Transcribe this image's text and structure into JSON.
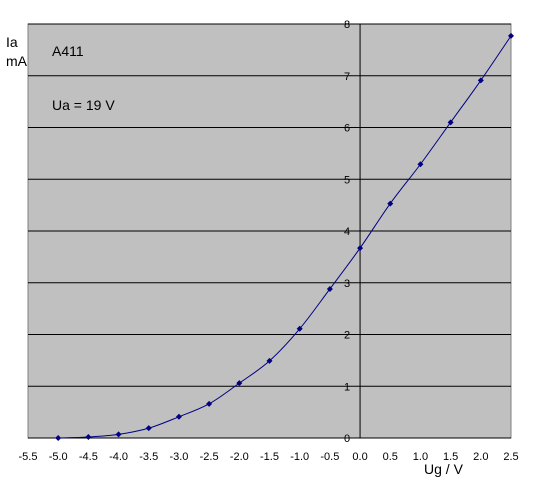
{
  "chart_data": {
    "type": "line",
    "title": "",
    "annotations": [
      "A411",
      "Ua = 19 V"
    ],
    "xlabel": "Ug / V",
    "ylabel": [
      "Ia",
      "mA"
    ],
    "xlim": [
      -5.5,
      2.5
    ],
    "ylim": [
      0,
      8
    ],
    "x_ticks": [
      -5.5,
      -5.0,
      -4.5,
      -4.0,
      -3.5,
      -3.0,
      -2.5,
      -2.0,
      -1.5,
      -1.0,
      -0.5,
      0.0,
      0.5,
      1.0,
      1.5,
      2.0,
      2.5
    ],
    "x_tick_labels": [
      "-5.5",
      "-5.0",
      "-4.5",
      "-4.0",
      "-3.5",
      "-3.0",
      "-2.5",
      "-2.0",
      "-1.5",
      "-1.0",
      "-0.5",
      "0.0",
      "0.5",
      "1.0",
      "1.5",
      "2.0",
      "2.5"
    ],
    "y_ticks": [
      0,
      1,
      2,
      3,
      4,
      5,
      6,
      7,
      8
    ],
    "y_tick_labels": [
      "0",
      "1",
      "2",
      "3",
      "4",
      "5",
      "6",
      "7",
      "8"
    ],
    "grid": true,
    "series": [
      {
        "x": [
          -5.0,
          -4.5,
          -4.0,
          -3.5,
          -3.0,
          -2.5,
          -2.0,
          -1.5,
          -1.0,
          -0.5,
          0.0,
          0.5,
          1.0,
          1.5,
          2.0,
          2.5
        ],
        "values": [
          0.0,
          0.02,
          0.07,
          0.19,
          0.41,
          0.66,
          1.06,
          1.49,
          2.11,
          2.88,
          3.67,
          4.53,
          5.29,
          6.1,
          6.91,
          7.77
        ]
      }
    ],
    "colors": {
      "plot_background": "#c0c0c0",
      "grid": "#000000",
      "series": "#000080"
    }
  }
}
